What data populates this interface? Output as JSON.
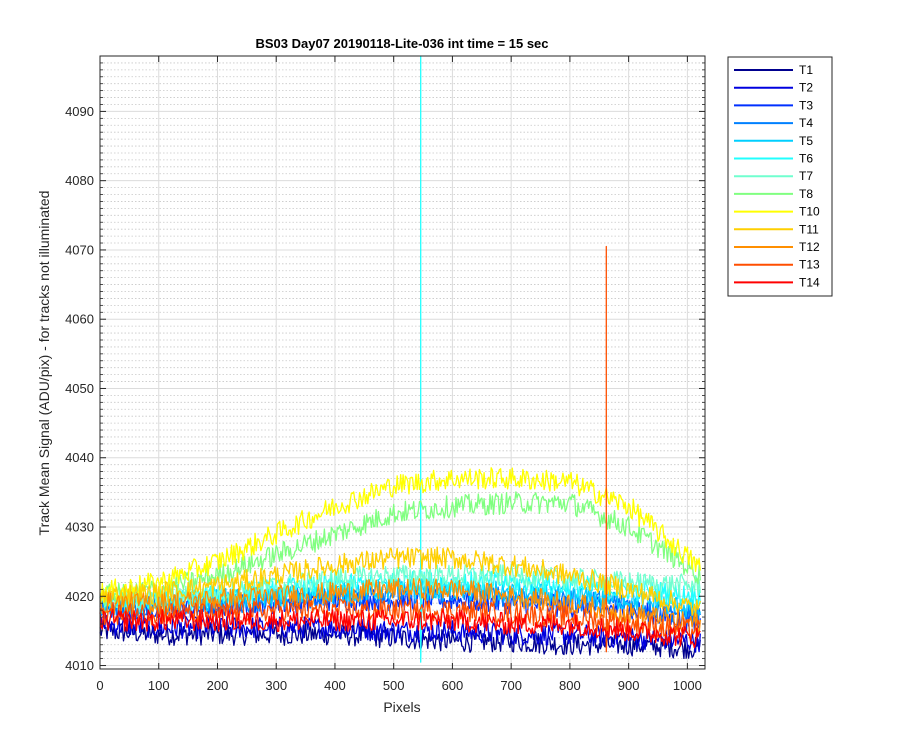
{
  "chart_data": {
    "type": "line",
    "title": "BS03 Day07 20190118-Lite-036 int time = 15 sec",
    "xlabel": "Pixels",
    "ylabel": "Track Mean Signal (ADU/pix) - for tracks not illuminated",
    "xlim": [
      0,
      1030
    ],
    "ylim": [
      4009.5,
      4098
    ],
    "xticks": [
      0,
      100,
      200,
      300,
      400,
      500,
      600,
      700,
      800,
      900,
      1000
    ],
    "yticks": [
      4010,
      4020,
      4030,
      4040,
      4050,
      4060,
      4070,
      4080,
      4090
    ],
    "grid": true,
    "minor_grid": true,
    "legend_position": "outside-right",
    "series": [
      {
        "name": "T1",
        "color": "#00008F",
        "x": [
          0,
          100,
          200,
          300,
          400,
          500,
          600,
          700,
          800,
          900,
          1023
        ],
        "values": [
          4015,
          4014.5,
          4014.5,
          4014.5,
          4014.5,
          4014,
          4013.5,
          4013.5,
          4013,
          4013,
          4012.5
        ]
      },
      {
        "name": "T2",
        "color": "#0000DF",
        "x": [
          0,
          100,
          200,
          300,
          400,
          500,
          600,
          700,
          800,
          900,
          1023
        ],
        "values": [
          4016,
          4015.5,
          4015.5,
          4015.5,
          4015.5,
          4015,
          4015,
          4014.5,
          4014.5,
          4014,
          4013.5
        ]
      },
      {
        "name": "T3",
        "color": "#0030FF",
        "x": [
          0,
          100,
          200,
          300,
          400,
          500,
          600,
          700,
          800,
          900,
          1023
        ],
        "values": [
          4018,
          4018,
          4018.5,
          4019,
          4019.5,
          4019.5,
          4019.5,
          4019,
          4018.5,
          4018,
          4016
        ]
      },
      {
        "name": "T4",
        "color": "#0080FF",
        "x": [
          0,
          100,
          200,
          300,
          400,
          500,
          600,
          700,
          800,
          900,
          1023
        ],
        "values": [
          4018.5,
          4018.5,
          4019,
          4019.5,
          4020,
          4020.5,
          4020.5,
          4020,
          4019.5,
          4019,
          4017
        ]
      },
      {
        "name": "T5",
        "color": "#00CFFF",
        "x": [
          0,
          100,
          200,
          300,
          400,
          500,
          600,
          700,
          800,
          900,
          1023
        ],
        "values": [
          4019,
          4019,
          4019.5,
          4020,
          4020.5,
          4021,
          4021,
          4020.5,
          4020,
          4019.5,
          4018
        ]
      },
      {
        "name": "T6",
        "color": "#20FFFF",
        "x": [
          0,
          100,
          200,
          300,
          400,
          500,
          600,
          700,
          800,
          900,
          1023
        ],
        "values": [
          4019,
          4019,
          4020,
          4021,
          4021.5,
          4022,
          4022,
          4022,
          4021.5,
          4021,
          4020
        ]
      },
      {
        "name": "T7",
        "color": "#70FFCF",
        "x": [
          0,
          100,
          200,
          300,
          400,
          500,
          600,
          700,
          800,
          900,
          1023
        ],
        "values": [
          4019.5,
          4019.5,
          4020.5,
          4021.5,
          4022.5,
          4023,
          4023,
          4023,
          4022.5,
          4022,
          4021.5
        ]
      },
      {
        "name": "T8",
        "color": "#80FF80",
        "x": [
          0,
          100,
          200,
          300,
          400,
          500,
          600,
          700,
          800,
          900,
          1023
        ],
        "values": [
          4020,
          4021,
          4023,
          4026,
          4029,
          4032,
          4033,
          4033.5,
          4033.5,
          4030,
          4023
        ]
      },
      {
        "name": "T10",
        "color": "#FFFF00",
        "x": [
          0,
          100,
          200,
          300,
          400,
          500,
          600,
          700,
          800,
          900,
          1023
        ],
        "values": [
          4020.5,
          4022,
          4025,
          4029,
          4033,
          4036,
          4037,
          4037,
          4036.5,
          4033,
          4024
        ]
      },
      {
        "name": "T11",
        "color": "#FFCF00",
        "x": [
          0,
          100,
          200,
          300,
          400,
          500,
          600,
          700,
          800,
          900,
          1023
        ],
        "values": [
          4020,
          4020.5,
          4021.5,
          4023,
          4024.5,
          4025.5,
          4025.5,
          4024.5,
          4023,
          4021,
          4018
        ]
      },
      {
        "name": "T12",
        "color": "#FF8F00",
        "x": [
          0,
          100,
          200,
          300,
          400,
          500,
          600,
          700,
          800,
          900,
          1023
        ],
        "values": [
          4019,
          4019,
          4019.5,
          4020,
          4020.5,
          4021,
          4021,
          4020,
          4019,
          4017.5,
          4016
        ]
      },
      {
        "name": "T13",
        "color": "#FF4F00",
        "x": [
          0,
          100,
          200,
          300,
          400,
          500,
          600,
          700,
          800,
          900,
          1023
        ],
        "values": [
          4017.5,
          4017.5,
          4017.5,
          4018,
          4018,
          4018,
          4018,
          4017.5,
          4017,
          4016,
          4015
        ]
      },
      {
        "name": "T14",
        "color": "#FF0000",
        "x": [
          0,
          100,
          200,
          300,
          400,
          500,
          600,
          700,
          800,
          900,
          1023
        ],
        "values": [
          4016.5,
          4016.5,
          4016.5,
          4016.5,
          4016.5,
          4016.5,
          4016.5,
          4016,
          4016,
          4015,
          4014
        ]
      }
    ],
    "spikes": [
      {
        "series": "T6",
        "x": 546,
        "values": [
          4010.5,
          4098
        ]
      },
      {
        "series": "T13",
        "x": 862,
        "values": [
          4012,
          4070.5
        ]
      }
    ]
  }
}
